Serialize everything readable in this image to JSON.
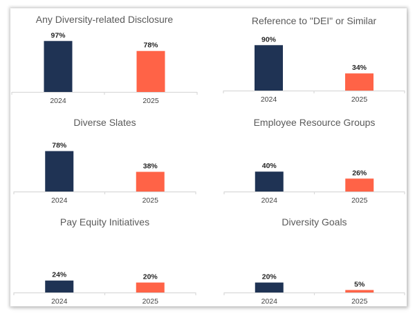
{
  "colors": {
    "year_2024": "#1f3354",
    "year_2025": "#ff6347"
  },
  "chart_data": [
    {
      "type": "bar",
      "title": "Any Diversity-related Disclosure",
      "categories": [
        "2024",
        "2025"
      ],
      "values": [
        97,
        78
      ],
      "value_labels": [
        "97%",
        "78%"
      ],
      "ylim": [
        0,
        100
      ],
      "grid": false
    },
    {
      "type": "bar",
      "title": "Reference to \"DEI\" or Similar",
      "categories": [
        "2024",
        "2025"
      ],
      "values": [
        90,
        34
      ],
      "value_labels": [
        "90%",
        "34%"
      ],
      "ylim": [
        0,
        100
      ],
      "grid": false
    },
    {
      "type": "bar",
      "title": "Diverse Slates",
      "categories": [
        "2024",
        "2025"
      ],
      "values": [
        78,
        38
      ],
      "value_labels": [
        "78%",
        "38%"
      ],
      "ylim": [
        0,
        100
      ],
      "grid": false
    },
    {
      "type": "bar",
      "title": "Employee Resource Groups",
      "categories": [
        "2024",
        "2025"
      ],
      "values": [
        40,
        26
      ],
      "value_labels": [
        "40%",
        "26%"
      ],
      "ylim": [
        0,
        100
      ],
      "grid": false
    },
    {
      "type": "bar",
      "title": "Pay Equity Initiatives",
      "categories": [
        "2024",
        "2025"
      ],
      "values": [
        24,
        20
      ],
      "value_labels": [
        "24%",
        "20%"
      ],
      "ylim": [
        0,
        100
      ],
      "grid": false
    },
    {
      "type": "bar",
      "title": "Diversity Goals",
      "categories": [
        "2024",
        "2025"
      ],
      "values": [
        20,
        5
      ],
      "value_labels": [
        "20%",
        "5%"
      ],
      "ylim": [
        0,
        100
      ],
      "grid": false
    }
  ]
}
